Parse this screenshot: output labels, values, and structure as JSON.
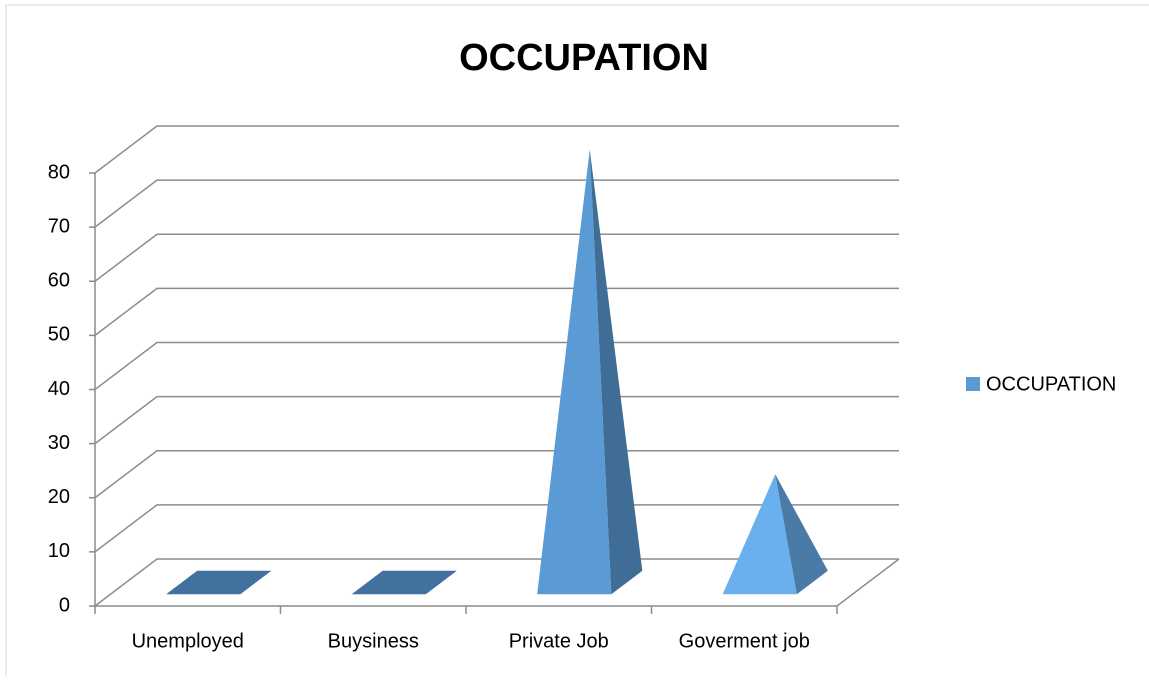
{
  "chart_data": {
    "type": "pyramid3d",
    "title": "OCCUPATION",
    "categories": [
      "Unemployed",
      "Buysiness",
      "Private Job",
      "Goverment job"
    ],
    "series": [
      {
        "name": "OCCUPATION",
        "color": "#5b9bd5",
        "values": [
          0,
          0,
          80,
          20
        ]
      }
    ],
    "point_colors": [
      "#41719c",
      "#41719c",
      "#5b9bd5",
      "#6ab0ee"
    ],
    "ylim": [
      0,
      80
    ],
    "yticks": [
      0,
      10,
      20,
      30,
      40,
      50,
      60,
      70,
      80
    ],
    "grid": true,
    "legend": "right"
  }
}
